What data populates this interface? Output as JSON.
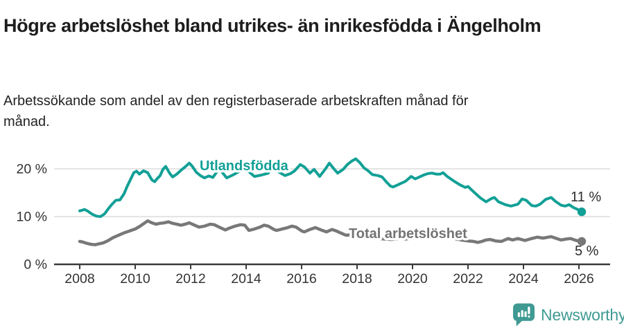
{
  "header": {
    "title": "Högre arbetslöshet bland utrikes- än inrikesfödda i Ängelholm",
    "subtitle": "Arbetssökande som andel av den registerbaserade arbetskraften månad för månad."
  },
  "footer": {
    "brand": "Newsworthy",
    "brand_color": "#3f9a93",
    "logo_icon": "bar-chart-speech-bubble-icon"
  },
  "chart_data": {
    "type": "line",
    "title": "Högre arbetslöshet bland utrikes- än inrikesfödda i Ängelholm",
    "subtitle": "Arbetssökande som andel av den registerbaserade arbetskraften månad för månad.",
    "xlabel": "",
    "ylabel": "",
    "x_range": [
      2008,
      2026.2
    ],
    "ylim": [
      0,
      22.5
    ],
    "grid": "horizontal",
    "legend_position": "inline-labels",
    "x_ticks": [
      {
        "value": 2008,
        "label": "2008"
      },
      {
        "value": 2010,
        "label": "2010"
      },
      {
        "value": 2012,
        "label": "2012"
      },
      {
        "value": 2014,
        "label": "2014"
      },
      {
        "value": 2016,
        "label": "2016"
      },
      {
        "value": 2018,
        "label": "2018"
      },
      {
        "value": 2020,
        "label": "2020"
      },
      {
        "value": 2022,
        "label": "2022"
      },
      {
        "value": 2024,
        "label": "2024"
      },
      {
        "value": 2026,
        "label": "2026"
      }
    ],
    "y_ticks": [
      {
        "value": 20,
        "label": "20 %",
        "grid": true
      },
      {
        "value": 10,
        "label": "10 %",
        "grid": true
      },
      {
        "value": 0,
        "label": "0 %",
        "grid": false
      }
    ],
    "series": [
      {
        "name": "Utlandsfödda",
        "color": "#12a096",
        "end_label": "11 %",
        "end_value": 11,
        "points": [
          [
            2008.0,
            11.2
          ],
          [
            2008.08,
            11.3
          ],
          [
            2008.17,
            11.5
          ],
          [
            2008.3,
            11.1
          ],
          [
            2008.45,
            10.5
          ],
          [
            2008.6,
            10.1
          ],
          [
            2008.75,
            10.0
          ],
          [
            2008.9,
            10.6
          ],
          [
            2009.0,
            11.4
          ],
          [
            2009.15,
            12.5
          ],
          [
            2009.3,
            13.4
          ],
          [
            2009.45,
            13.5
          ],
          [
            2009.6,
            14.8
          ],
          [
            2009.7,
            16.2
          ],
          [
            2009.85,
            18.0
          ],
          [
            2009.95,
            19.2
          ],
          [
            2010.05,
            19.5
          ],
          [
            2010.15,
            18.9
          ],
          [
            2010.3,
            19.6
          ],
          [
            2010.45,
            19.2
          ],
          [
            2010.6,
            17.7
          ],
          [
            2010.7,
            17.3
          ],
          [
            2010.8,
            18.0
          ],
          [
            2010.9,
            18.6
          ],
          [
            2011.0,
            19.9
          ],
          [
            2011.1,
            20.5
          ],
          [
            2011.25,
            19.0
          ],
          [
            2011.35,
            18.3
          ],
          [
            2011.5,
            18.9
          ],
          [
            2011.65,
            19.7
          ],
          [
            2011.8,
            20.4
          ],
          [
            2011.95,
            21.2
          ],
          [
            2012.05,
            20.6
          ],
          [
            2012.2,
            19.3
          ],
          [
            2012.35,
            18.6
          ],
          [
            2012.5,
            18.1
          ],
          [
            2012.65,
            18.5
          ],
          [
            2012.8,
            18.2
          ],
          [
            2012.95,
            19.4
          ],
          [
            2013.05,
            19.9
          ],
          [
            2013.3,
            18.1
          ],
          [
            2013.55,
            18.8
          ],
          [
            2013.8,
            19.6
          ],
          [
            2014.0,
            19.9
          ],
          [
            2014.3,
            18.4
          ],
          [
            2014.55,
            18.7
          ],
          [
            2014.8,
            19.1
          ],
          [
            2014.92,
            20.1
          ],
          [
            2015.1,
            19.6
          ],
          [
            2015.4,
            18.6
          ],
          [
            2015.6,
            19.0
          ],
          [
            2015.75,
            19.6
          ],
          [
            2015.95,
            20.9
          ],
          [
            2016.1,
            20.4
          ],
          [
            2016.3,
            19.1
          ],
          [
            2016.45,
            19.9
          ],
          [
            2016.65,
            18.4
          ],
          [
            2016.85,
            19.9
          ],
          [
            2017.0,
            21.2
          ],
          [
            2017.15,
            20.1
          ],
          [
            2017.3,
            19.1
          ],
          [
            2017.5,
            19.9
          ],
          [
            2017.65,
            20.9
          ],
          [
            2017.8,
            21.6
          ],
          [
            2017.95,
            22.1
          ],
          [
            2018.1,
            21.3
          ],
          [
            2018.25,
            20.2
          ],
          [
            2018.4,
            19.6
          ],
          [
            2018.55,
            18.8
          ],
          [
            2018.75,
            18.6
          ],
          [
            2018.9,
            18.3
          ],
          [
            2019.05,
            17.3
          ],
          [
            2019.2,
            16.4
          ],
          [
            2019.3,
            16.2
          ],
          [
            2019.45,
            16.6
          ],
          [
            2019.6,
            17.0
          ],
          [
            2019.75,
            17.4
          ],
          [
            2019.95,
            18.4
          ],
          [
            2020.1,
            17.9
          ],
          [
            2020.25,
            18.3
          ],
          [
            2020.4,
            18.7
          ],
          [
            2020.55,
            19.0
          ],
          [
            2020.7,
            19.1
          ],
          [
            2020.85,
            18.9
          ],
          [
            2021.0,
            18.9
          ],
          [
            2021.1,
            19.2
          ],
          [
            2021.25,
            18.4
          ],
          [
            2021.5,
            17.4
          ],
          [
            2021.7,
            16.7
          ],
          [
            2021.9,
            16.1
          ],
          [
            2022.0,
            16.3
          ],
          [
            2022.2,
            15.2
          ],
          [
            2022.45,
            13.9
          ],
          [
            2022.65,
            13.1
          ],
          [
            2022.85,
            13.8
          ],
          [
            2022.95,
            14.0
          ],
          [
            2023.1,
            13.1
          ],
          [
            2023.35,
            12.5
          ],
          [
            2023.55,
            12.2
          ],
          [
            2023.8,
            12.6
          ],
          [
            2023.95,
            13.7
          ],
          [
            2024.1,
            13.4
          ],
          [
            2024.3,
            12.3
          ],
          [
            2024.45,
            12.2
          ],
          [
            2024.6,
            12.6
          ],
          [
            2024.8,
            13.6
          ],
          [
            2025.0,
            14.0
          ],
          [
            2025.15,
            13.2
          ],
          [
            2025.35,
            12.4
          ],
          [
            2025.5,
            12.2
          ],
          [
            2025.65,
            12.5
          ],
          [
            2025.8,
            11.9
          ],
          [
            2025.95,
            11.5
          ],
          [
            2026.1,
            11.0
          ]
        ]
      },
      {
        "name": "Total arbetslöshet",
        "color": "#787878",
        "end_label": "5 %",
        "end_value": 5,
        "points": [
          [
            2008.0,
            4.8
          ],
          [
            2008.1,
            4.7
          ],
          [
            2008.25,
            4.4
          ],
          [
            2008.4,
            4.2
          ],
          [
            2008.55,
            4.1
          ],
          [
            2008.7,
            4.3
          ],
          [
            2008.85,
            4.5
          ],
          [
            2009.0,
            4.9
          ],
          [
            2009.2,
            5.6
          ],
          [
            2009.4,
            6.1
          ],
          [
            2009.6,
            6.6
          ],
          [
            2009.8,
            7.0
          ],
          [
            2010.0,
            7.4
          ],
          [
            2010.15,
            7.9
          ],
          [
            2010.3,
            8.5
          ],
          [
            2010.45,
            9.1
          ],
          [
            2010.6,
            8.7
          ],
          [
            2010.75,
            8.4
          ],
          [
            2010.9,
            8.6
          ],
          [
            2011.05,
            8.7
          ],
          [
            2011.2,
            8.9
          ],
          [
            2011.35,
            8.6
          ],
          [
            2011.5,
            8.4
          ],
          [
            2011.65,
            8.2
          ],
          [
            2011.8,
            8.4
          ],
          [
            2011.95,
            8.7
          ],
          [
            2012.1,
            8.3
          ],
          [
            2012.3,
            7.8
          ],
          [
            2012.5,
            8.0
          ],
          [
            2012.7,
            8.4
          ],
          [
            2012.85,
            8.3
          ],
          [
            2013.1,
            7.6
          ],
          [
            2013.25,
            7.2
          ],
          [
            2013.4,
            7.6
          ],
          [
            2013.6,
            8.0
          ],
          [
            2013.8,
            8.3
          ],
          [
            2013.95,
            8.2
          ],
          [
            2014.1,
            7.1
          ],
          [
            2014.3,
            7.4
          ],
          [
            2014.5,
            7.8
          ],
          [
            2014.65,
            8.2
          ],
          [
            2014.8,
            8.0
          ],
          [
            2015.0,
            7.3
          ],
          [
            2015.1,
            7.1
          ],
          [
            2015.3,
            7.4
          ],
          [
            2015.5,
            7.7
          ],
          [
            2015.65,
            8.0
          ],
          [
            2015.8,
            7.8
          ],
          [
            2016.0,
            7.0
          ],
          [
            2016.1,
            6.8
          ],
          [
            2016.3,
            7.3
          ],
          [
            2016.5,
            7.7
          ],
          [
            2016.7,
            7.2
          ],
          [
            2016.9,
            6.8
          ],
          [
            2017.1,
            7.3
          ],
          [
            2017.25,
            7.0
          ],
          [
            2017.4,
            6.6
          ],
          [
            2017.6,
            6.1
          ],
          [
            2017.8,
            6.2
          ],
          [
            2018.0,
            6.0
          ],
          [
            2018.25,
            5.8
          ],
          [
            2018.5,
            5.6
          ],
          [
            2018.75,
            5.4
          ],
          [
            2019.0,
            5.3
          ],
          [
            2019.25,
            5.2
          ],
          [
            2019.5,
            5.4
          ],
          [
            2019.75,
            5.3
          ],
          [
            2020.0,
            5.5
          ],
          [
            2020.25,
            6.2
          ],
          [
            2020.5,
            6.5
          ],
          [
            2020.75,
            6.3
          ],
          [
            2021.0,
            6.0
          ],
          [
            2021.25,
            5.7
          ],
          [
            2021.5,
            5.4
          ],
          [
            2021.75,
            5.1
          ],
          [
            2022.0,
            4.9
          ],
          [
            2022.2,
            4.8
          ],
          [
            2022.35,
            4.6
          ],
          [
            2022.5,
            4.8
          ],
          [
            2022.65,
            5.1
          ],
          [
            2022.8,
            5.2
          ],
          [
            2023.0,
            4.9
          ],
          [
            2023.2,
            4.8
          ],
          [
            2023.45,
            5.4
          ],
          [
            2023.6,
            5.1
          ],
          [
            2023.8,
            5.4
          ],
          [
            2024.05,
            5.0
          ],
          [
            2024.3,
            5.4
          ],
          [
            2024.5,
            5.7
          ],
          [
            2024.7,
            5.5
          ],
          [
            2024.9,
            5.7
          ],
          [
            2025.0,
            5.8
          ],
          [
            2025.2,
            5.4
          ],
          [
            2025.35,
            5.1
          ],
          [
            2025.55,
            5.3
          ],
          [
            2025.7,
            5.4
          ],
          [
            2025.9,
            5.0
          ],
          [
            2026.1,
            4.8
          ]
        ]
      }
    ]
  }
}
